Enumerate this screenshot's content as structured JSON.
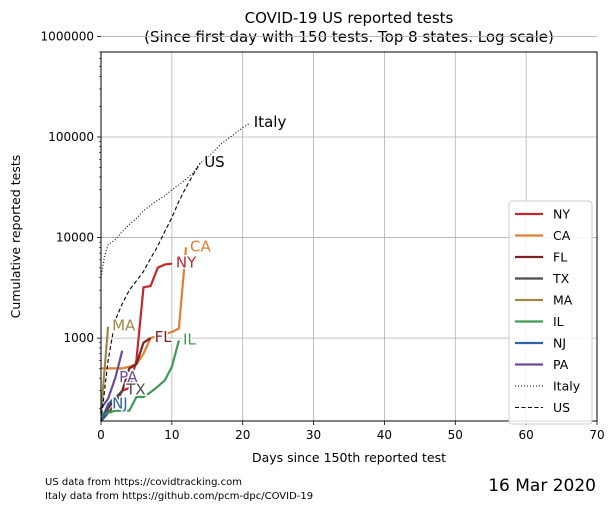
{
  "chart_data": {
    "type": "line",
    "title_lines": [
      "COVID-19 US reported tests",
      "(Since first day with 150 tests. Top 8 states. Log scale)"
    ],
    "xlabel": "Days since 150th reported test",
    "ylabel": "Cumulative reported tests",
    "xlim": [
      0,
      70
    ],
    "ylim": [
      150,
      700000
    ],
    "yscale": "log",
    "grid": true,
    "legend_position": "right",
    "x_ticks": [
      0,
      10,
      20,
      30,
      40,
      50,
      60,
      70
    ],
    "y_ticks": [
      {
        "value": 1000,
        "label": "1000"
      },
      {
        "value": 10000,
        "label": "10000"
      },
      {
        "value": 100000,
        "label": "100000"
      },
      {
        "value": 1000000,
        "label": "1000000"
      }
    ],
    "series": [
      {
        "name": "NY",
        "label": "NY",
        "color": "#c1272d",
        "style": "solid",
        "x": [
          0,
          1,
          2,
          3,
          4,
          5,
          6,
          7,
          8,
          9,
          10
        ],
        "y": [
          150,
          200,
          250,
          300,
          320,
          600,
          3200,
          3300,
          5000,
          5400,
          5500
        ]
      },
      {
        "name": "CA",
        "label": "CA",
        "color": "#e07f33",
        "style": "solid",
        "x": [
          0,
          1,
          2,
          3,
          4,
          5,
          6,
          7,
          8,
          9,
          10,
          11,
          12
        ],
        "y": [
          500,
          500,
          500,
          500,
          520,
          550,
          700,
          1000,
          1050,
          1100,
          1150,
          1250,
          8000
        ]
      },
      {
        "name": "FL",
        "label": "FL",
        "color": "#7b2222",
        "style": "solid",
        "x": [
          0,
          1,
          2,
          3,
          4,
          5,
          6,
          7
        ],
        "y": [
          150,
          200,
          250,
          300,
          500,
          550,
          900,
          1000
        ]
      },
      {
        "name": "TX",
        "label": "TX",
        "color": "#4b4b4b",
        "style": "solid",
        "x": [
          0,
          1,
          2,
          3
        ],
        "y": [
          150,
          180,
          220,
          300
        ]
      },
      {
        "name": "MA",
        "label": "MA",
        "color": "#9c8b47",
        "style": "solid",
        "x": [
          0,
          1
        ],
        "y": [
          180,
          1300
        ]
      },
      {
        "name": "IL",
        "label": "IL",
        "color": "#3f9a55",
        "style": "solid",
        "x": [
          0,
          1,
          2,
          3,
          4,
          5,
          6,
          7,
          8,
          9,
          10,
          11
        ],
        "y": [
          170,
          180,
          190,
          190,
          190,
          260,
          260,
          290,
          330,
          380,
          520,
          950
        ]
      },
      {
        "name": "NJ",
        "label": "NJ",
        "color": "#2f63a7",
        "style": "solid",
        "x": [
          0,
          1,
          2
        ],
        "y": [
          150,
          220,
          260
        ]
      },
      {
        "name": "PA",
        "label": "PA",
        "color": "#6a4c9c",
        "style": "solid",
        "x": [
          0,
          1,
          2,
          3
        ],
        "y": [
          200,
          250,
          400,
          750
        ]
      },
      {
        "name": "Italy",
        "label": "Italy",
        "color": "#000000",
        "style": "dotted",
        "x": [
          0,
          0.5,
          1,
          2,
          3,
          4,
          5,
          6,
          7,
          8,
          9,
          10,
          11,
          12,
          13,
          14,
          15,
          16,
          17,
          18,
          19,
          20,
          21
        ],
        "y": [
          4000,
          6500,
          8500,
          9500,
          11500,
          13500,
          15500,
          18500,
          21000,
          23500,
          26000,
          30000,
          33500,
          38000,
          44000,
          55000,
          62000,
          73000,
          86000,
          97000,
          109000,
          124000,
          137000
        ]
      },
      {
        "name": "US",
        "label": "US",
        "color": "#000000",
        "style": "dashed",
        "x": [
          0,
          1,
          2,
          3,
          4,
          5,
          6,
          7,
          8,
          9,
          10,
          11,
          12,
          13,
          14
        ],
        "y": [
          150,
          600,
          1500,
          2200,
          3000,
          3700,
          4600,
          6200,
          8200,
          11500,
          15800,
          23000,
          31500,
          42000,
          55000
        ]
      }
    ]
  },
  "footer": {
    "line1": "US data from https://covidtracking.com",
    "line2": "Italy data from https://github.com/pcm-dpc/COVID-19",
    "date": "16 Mar 2020"
  }
}
